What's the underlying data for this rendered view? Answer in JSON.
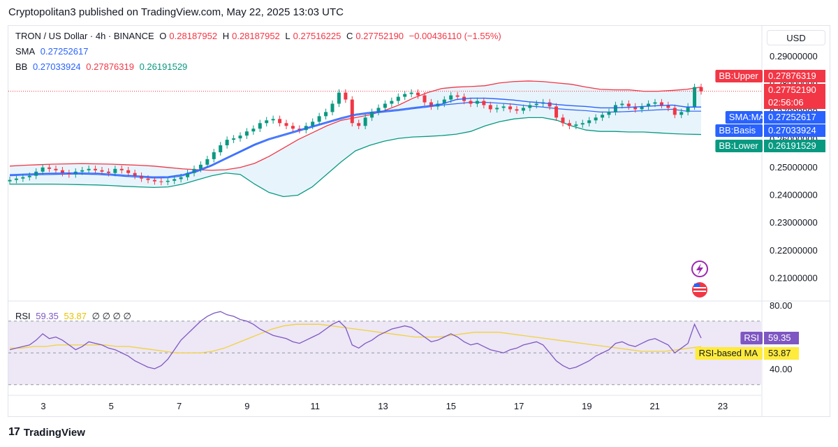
{
  "header": {
    "published": "Cryptopolitan3 published on TradingView.com, May 22, 2025 13:03 UTC"
  },
  "legend": {
    "symbol": "TRON / US Dollar · 4h · BINANCE",
    "o_label": "O",
    "o_value": "0.28187952",
    "h_label": "H",
    "h_value": "0.28187952",
    "l_label": "L",
    "l_value": "0.27516225",
    "c_label": "C",
    "c_value": "0.27752190",
    "change": "−0.00436110 (−1.55%)",
    "sma_label": "SMA",
    "sma_value": "0.27252617",
    "bb_label": "BB",
    "bb_basis": "0.27033924",
    "bb_upper": "0.27876319",
    "bb_lower": "0.26191529",
    "rsi_label": "RSI",
    "rsi_value": "59.35",
    "rsi_ma_value": "53.87",
    "rsi_placeholders": "∅ ∅ ∅ ∅"
  },
  "currency": "USD",
  "price_axis": {
    "ticks": [
      "0.29000000",
      "0.28000000",
      "0.27000000",
      "0.26000000",
      "0.25000000",
      "0.24000000",
      "0.23000000",
      "0.22000000",
      "0.21000000"
    ]
  },
  "price_tags": [
    {
      "label": "BB:Upper",
      "value": "0.27876319",
      "color": "#f23645"
    },
    {
      "label": "",
      "value": "0.27752190",
      "color": "#f23645"
    },
    {
      "label": "",
      "value": "02:56:06",
      "color": "#f23645"
    },
    {
      "label": "SMA:MA",
      "value": "0.27252617",
      "color": "#2962ff"
    },
    {
      "label": "BB:Basis",
      "value": "0.27033924",
      "color": "#2962ff"
    },
    {
      "label": "BB:Lower",
      "value": "0.26191529",
      "color": "#089981"
    }
  ],
  "rsi_axis": {
    "ticks": [
      "80.00",
      "40.00"
    ]
  },
  "rsi_tags": [
    {
      "label": "RSI",
      "value": "59.35",
      "bg": "#7e57c2",
      "fg": "#ffffff"
    },
    {
      "label": "RSI-based MA",
      "value": "53.87",
      "bg": "#ffeb3b",
      "fg": "#131722"
    }
  ],
  "time_axis": {
    "ticks": [
      "3",
      "5",
      "7",
      "9",
      "11",
      "13",
      "15",
      "17",
      "19",
      "21",
      "23"
    ]
  },
  "footer": {
    "brand": "TradingView"
  },
  "colors": {
    "up": "#089981",
    "down": "#f23645",
    "bb_upper": "#f23645",
    "bb_basis": "#2962ff",
    "bb_lower": "#089981",
    "sma": "#2962ff",
    "rsi": "#7e57c2",
    "rsi_ma": "#ffeb3b",
    "bb_fill": "#e8f4fb",
    "rsi_fill": "#ede7f6"
  },
  "chart_data": [
    {
      "type": "candlestick",
      "title": "TRON / US Dollar · 4h · BINANCE",
      "ylim": [
        0.2,
        0.3
      ],
      "y_scale": "linear",
      "x_ticks": [
        "3",
        "5",
        "7",
        "9",
        "11",
        "13",
        "15",
        "17",
        "19",
        "21",
        "23"
      ],
      "grid": false,
      "series_close": [
        0.2455,
        0.246,
        0.2465,
        0.247,
        0.2485,
        0.25,
        0.2495,
        0.249,
        0.248,
        0.2475,
        0.2485,
        0.249,
        0.2495,
        0.249,
        0.2485,
        0.248,
        0.2495,
        0.249,
        0.248,
        0.247,
        0.246,
        0.2455,
        0.245,
        0.2448,
        0.2452,
        0.2458,
        0.2465,
        0.248,
        0.2495,
        0.251,
        0.253,
        0.2555,
        0.258,
        0.26,
        0.2605,
        0.2615,
        0.263,
        0.264,
        0.266,
        0.267,
        0.2675,
        0.266,
        0.265,
        0.264,
        0.2635,
        0.265,
        0.2665,
        0.2685,
        0.27,
        0.273,
        0.277,
        0.2745,
        0.266,
        0.265,
        0.268,
        0.27,
        0.2715,
        0.273,
        0.274,
        0.2755,
        0.2765,
        0.277,
        0.276,
        0.2735,
        0.272,
        0.273,
        0.2745,
        0.276,
        0.2755,
        0.274,
        0.273,
        0.274,
        0.2725,
        0.271,
        0.2715,
        0.272,
        0.271,
        0.2705,
        0.2715,
        0.2725,
        0.273,
        0.2735,
        0.272,
        0.268,
        0.266,
        0.265,
        0.2655,
        0.266,
        0.267,
        0.268,
        0.269,
        0.27,
        0.2725,
        0.273,
        0.272,
        0.271,
        0.272,
        0.273,
        0.2735,
        0.2725,
        0.2715,
        0.269,
        0.27,
        0.272,
        0.279,
        0.2775
      ],
      "bb_upper": [
        0.2505,
        0.2508,
        0.251,
        0.2512,
        0.2513,
        0.2514,
        0.2513,
        0.2512,
        0.251,
        0.2508,
        0.2505,
        0.25,
        0.2495,
        0.2492,
        0.249,
        0.2492,
        0.25,
        0.2515,
        0.254,
        0.257,
        0.26,
        0.2625,
        0.265,
        0.267,
        0.268,
        0.269,
        0.2705,
        0.2725,
        0.275,
        0.277,
        0.2785,
        0.279,
        0.2792,
        0.2795,
        0.2805,
        0.281,
        0.2812,
        0.281,
        0.2805,
        0.28,
        0.279,
        0.2782,
        0.278,
        0.278,
        0.2775,
        0.2775,
        0.2778,
        0.2782,
        0.279
      ],
      "bb_basis": [
        0.247,
        0.2472,
        0.2474,
        0.2475,
        0.2476,
        0.2476,
        0.2475,
        0.2472,
        0.2468,
        0.2465,
        0.2462,
        0.2463,
        0.247,
        0.2485,
        0.2505,
        0.253,
        0.2555,
        0.258,
        0.26,
        0.2615,
        0.263,
        0.2645,
        0.266,
        0.2675,
        0.2688,
        0.2695,
        0.27,
        0.2705,
        0.2712,
        0.2718,
        0.2725,
        0.273,
        0.2735,
        0.2735,
        0.2732,
        0.2728,
        0.2722,
        0.2718,
        0.2712,
        0.2708,
        0.2705,
        0.27,
        0.27,
        0.2702,
        0.2705,
        0.2708,
        0.271,
        0.2703,
        0.2703
      ],
      "bb_lower": [
        0.244,
        0.244,
        0.244,
        0.244,
        0.2439,
        0.2438,
        0.2437,
        0.2435,
        0.2432,
        0.243,
        0.2428,
        0.243,
        0.244,
        0.2455,
        0.247,
        0.248,
        0.2475,
        0.244,
        0.241,
        0.2395,
        0.24,
        0.243,
        0.2475,
        0.252,
        0.256,
        0.258,
        0.2595,
        0.2605,
        0.261,
        0.2612,
        0.2615,
        0.262,
        0.263,
        0.265,
        0.2665,
        0.2675,
        0.268,
        0.268,
        0.267,
        0.265,
        0.2635,
        0.263,
        0.263,
        0.2628,
        0.2628,
        0.2625,
        0.2622,
        0.262,
        0.2619
      ]
    },
    {
      "type": "line",
      "title": "RSI",
      "ylim": [
        20,
        100
      ],
      "y_ticks": [
        80,
        40
      ],
      "series": [
        {
          "name": "RSI",
          "values": [
            52,
            53,
            54,
            55,
            58,
            62,
            59,
            60,
            58,
            55,
            52,
            54,
            57,
            56,
            55,
            53,
            52,
            50,
            48,
            45,
            43,
            41,
            40,
            42,
            46,
            52,
            58,
            62,
            66,
            70,
            73,
            75,
            76,
            74,
            73,
            71,
            70,
            68,
            65,
            63,
            61,
            60,
            59,
            57,
            56,
            58,
            60,
            62,
            65,
            68,
            70,
            66,
            55,
            53,
            56,
            58,
            61,
            63,
            65,
            66,
            67,
            66,
            63,
            60,
            57,
            58,
            60,
            62,
            60,
            57,
            55,
            56,
            54,
            52,
            51,
            50,
            52,
            53,
            55,
            56,
            57,
            55,
            50,
            45,
            42,
            40,
            41,
            43,
            45,
            48,
            50,
            52,
            56,
            57,
            55,
            54,
            56,
            58,
            59,
            57,
            55,
            50,
            53,
            56,
            68,
            59.35
          ]
        },
        {
          "name": "RSI-based MA",
          "values": [
            53,
            53,
            54,
            54,
            55,
            55,
            55,
            55,
            55,
            54,
            54,
            53,
            52,
            51,
            50,
            50,
            50,
            51,
            53,
            56,
            59,
            62,
            65,
            67,
            68,
            68,
            68,
            67,
            66,
            65,
            64,
            63,
            62,
            61,
            60,
            60,
            60,
            61,
            62,
            63,
            63,
            63,
            62,
            61,
            60,
            59,
            58,
            57,
            56,
            55,
            54,
            53,
            52,
            51,
            51,
            51,
            52,
            53,
            53.87
          ]
        }
      ]
    }
  ]
}
